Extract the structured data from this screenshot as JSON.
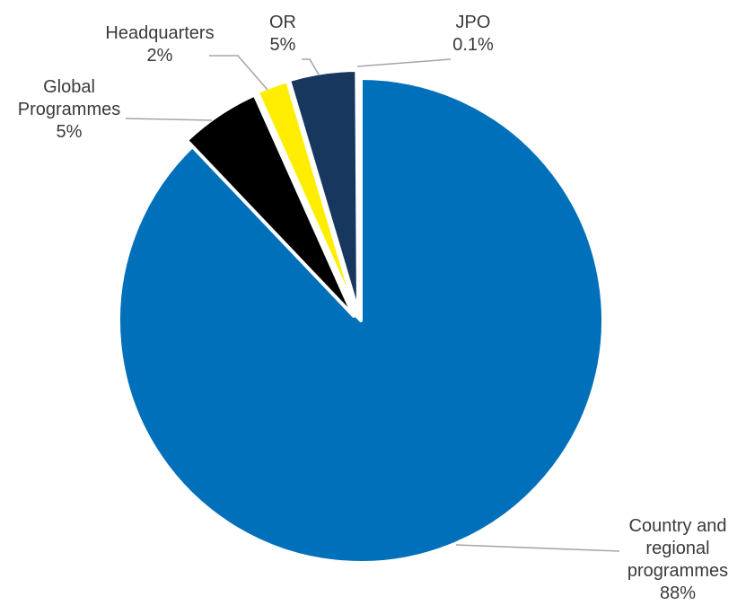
{
  "chart_data": {
    "type": "pie",
    "title": "",
    "slices": [
      {
        "name": "Country and regional programmes",
        "label_lines": [
          "Country and",
          "regional",
          "programmes"
        ],
        "value_label": "88%",
        "value": 87.9,
        "color": "#0070BA"
      },
      {
        "name": "Global Programmes",
        "label_lines": [
          "Global",
          "Programmes"
        ],
        "value_label": "5%",
        "value": 5.4,
        "color": "#000000"
      },
      {
        "name": "Headquarters",
        "label_lines": [
          "Headquarters"
        ],
        "value_label": "2%",
        "value": 2.1,
        "color": "#FFED00"
      },
      {
        "name": "OR",
        "label_lines": [
          "OR"
        ],
        "value_label": "5%",
        "value": 4.5,
        "color": "#17375E"
      },
      {
        "name": "JPO",
        "label_lines": [
          "JPO"
        ],
        "value_label": "0.1%",
        "value": 0.1,
        "color": "#17375E"
      }
    ]
  }
}
